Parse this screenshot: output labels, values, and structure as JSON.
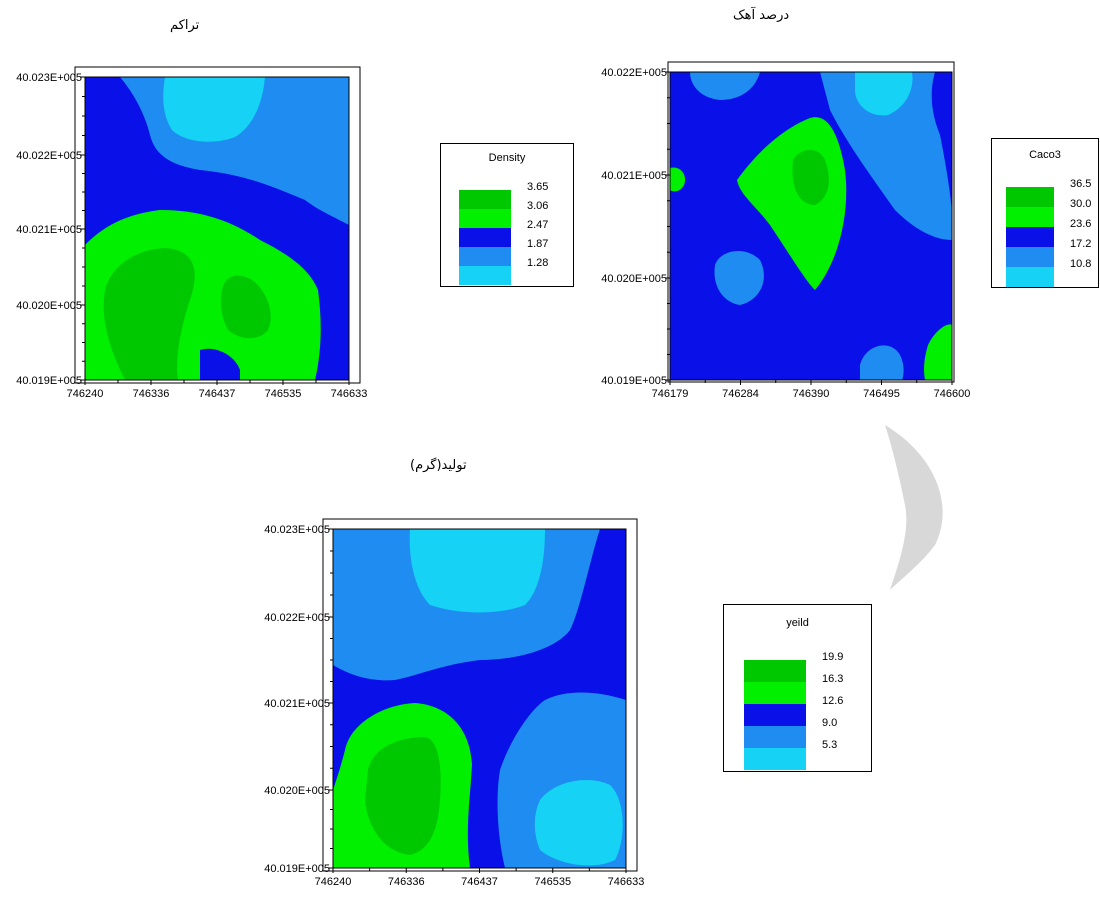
{
  "chart_data": [
    {
      "type": "heatmap",
      "title": "تراکم",
      "x_ticks": [
        "746240",
        "746336",
        "746437",
        "746535",
        "746633"
      ],
      "y_ticks": [
        "40.023E+005",
        "40.022E+005",
        "40.021E+005",
        "40.020E+005",
        "40.019E+005"
      ],
      "legend": {
        "title": "Density",
        "entries": [
          {
            "label": "3.65",
            "color": "#00c800"
          },
          {
            "label": "3.06",
            "color": "#00f000"
          },
          {
            "label": "2.47",
            "color": "#0a10e8"
          },
          {
            "label": "1.87",
            "color": "#1e8cf0"
          },
          {
            "label": "1.28",
            "color": "#16d2f5"
          }
        ]
      }
    },
    {
      "type": "heatmap",
      "title": "درصد آهک",
      "x_ticks": [
        "746179",
        "746284",
        "746390",
        "746495",
        "746600"
      ],
      "y_ticks": [
        "40.022E+005",
        "40.021E+005",
        "40.020E+005",
        "40.019E+005"
      ],
      "legend": {
        "title": "Caco3",
        "entries": [
          {
            "label": "36.5",
            "color": "#00c800"
          },
          {
            "label": "30.0",
            "color": "#00f000"
          },
          {
            "label": "23.6",
            "color": "#0a10e8"
          },
          {
            "label": "17.2",
            "color": "#1e8cf0"
          },
          {
            "label": "10.8",
            "color": "#16d2f5"
          }
        ]
      }
    },
    {
      "type": "heatmap",
      "title": "تولید(گرم)",
      "x_ticks": [
        "746240",
        "746336",
        "746437",
        "746535",
        "746633"
      ],
      "y_ticks": [
        "40.023E+005",
        "40.022E+005",
        "40.021E+005",
        "40.020E+005",
        "40.019E+005"
      ],
      "legend": {
        "title": "yeild",
        "entries": [
          {
            "label": "19.9",
            "color": "#00c800"
          },
          {
            "label": "16.3",
            "color": "#00f000"
          },
          {
            "label": "12.6",
            "color": "#0a10e8"
          },
          {
            "label": "9.0",
            "color": "#1e8cf0"
          },
          {
            "label": "5.3",
            "color": "#16d2f5"
          }
        ]
      }
    }
  ],
  "colors": {
    "dark_green": "#00c800",
    "green": "#00f000",
    "blue": "#0a10e8",
    "mid_blue": "#1e8cf0",
    "light_cyan": "#16d2f5"
  }
}
